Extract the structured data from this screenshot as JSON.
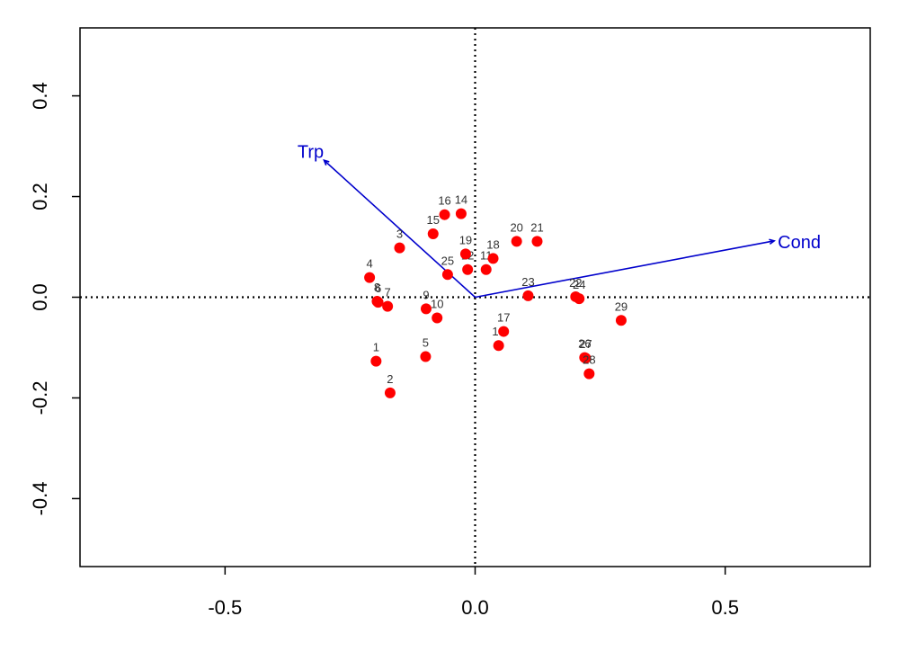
{
  "chart_data": {
    "type": "scatter",
    "title": "",
    "xlabel": "",
    "ylabel": "",
    "xlim": [
      -0.79,
      0.79
    ],
    "ylim": [
      -0.535,
      0.535
    ],
    "x_ticks": [
      -0.5,
      0.0,
      0.5
    ],
    "x_tick_labels": [
      "-0.5",
      "0.0",
      "0.5"
    ],
    "y_ticks": [
      -0.4,
      -0.2,
      0.0,
      0.2,
      0.4
    ],
    "y_tick_labels": [
      "-0.4",
      "-0.2",
      "0.0",
      "0.2",
      "0.4"
    ],
    "grid": false,
    "reference_lines": {
      "x": 0,
      "y": 0,
      "style": "dotted"
    },
    "point_color": "#ff0000",
    "vector_color": "#0000cc",
    "points": [
      {
        "label": "1",
        "x": -0.198,
        "y": -0.127
      },
      {
        "label": "2",
        "x": -0.17,
        "y": -0.19
      },
      {
        "label": "3",
        "x": -0.151,
        "y": 0.098
      },
      {
        "label": "4",
        "x": -0.211,
        "y": 0.039
      },
      {
        "label": "5",
        "x": -0.099,
        "y": -0.118
      },
      {
        "label": "6",
        "x": -0.194,
        "y": -0.01
      },
      {
        "label": "7",
        "x": -0.175,
        "y": -0.018
      },
      {
        "label": "8",
        "x": -0.196,
        "y": -0.008
      },
      {
        "label": "9",
        "x": -0.098,
        "y": -0.023
      },
      {
        "label": "10",
        "x": -0.076,
        "y": -0.041
      },
      {
        "label": "11",
        "x": 0.022,
        "y": 0.055
      },
      {
        "label": "12",
        "x": -0.015,
        "y": 0.055
      },
      {
        "label": "13",
        "x": 0.047,
        "y": -0.096
      },
      {
        "label": "14",
        "x": -0.028,
        "y": 0.166
      },
      {
        "label": "15",
        "x": -0.084,
        "y": 0.126
      },
      {
        "label": "16",
        "x": -0.061,
        "y": 0.164
      },
      {
        "label": "17",
        "x": 0.057,
        "y": -0.068
      },
      {
        "label": "18",
        "x": 0.036,
        "y": 0.077
      },
      {
        "label": "19",
        "x": -0.019,
        "y": 0.086
      },
      {
        "label": "20",
        "x": 0.083,
        "y": 0.111
      },
      {
        "label": "21",
        "x": 0.124,
        "y": 0.111
      },
      {
        "label": "22",
        "x": 0.201,
        "y": 0.001
      },
      {
        "label": "23",
        "x": 0.106,
        "y": 0.003
      },
      {
        "label": "24",
        "x": 0.208,
        "y": -0.003
      },
      {
        "label": "25",
        "x": -0.055,
        "y": 0.045
      },
      {
        "label": "26",
        "x": 0.219,
        "y": -0.12
      },
      {
        "label": "27",
        "x": 0.221,
        "y": -0.121
      },
      {
        "label": "28",
        "x": 0.228,
        "y": -0.152
      },
      {
        "label": "29",
        "x": 0.292,
        "y": -0.046
      }
    ],
    "vectors": [
      {
        "name": "Trp",
        "x": -0.302,
        "y": 0.272
      },
      {
        "name": "Cond",
        "x": 0.598,
        "y": 0.112
      }
    ]
  }
}
